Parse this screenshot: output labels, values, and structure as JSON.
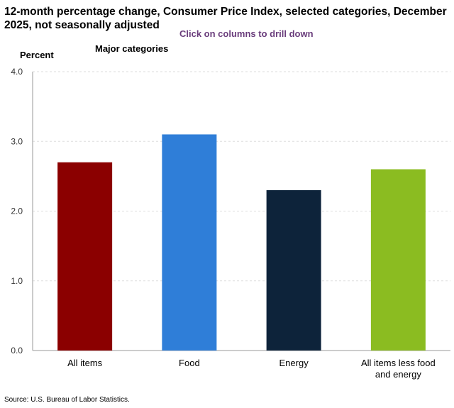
{
  "title": "12-month percentage change, Consumer Price Index, selected categories, December 2025, not seasonally adjusted",
  "subtitle": "Click on columns to drill down",
  "group_label": "Major categories",
  "source": "Source: U.S. Bureau of Labor Statistics.",
  "chart_data": {
    "type": "bar",
    "title": "12-month percentage change, Consumer Price Index, selected categories, December 2025, not seasonally adjusted",
    "ylabel": "Percent",
    "xlabel": "",
    "ylim": [
      0,
      4
    ],
    "yticks": [
      "0.0",
      "1.0",
      "2.0",
      "3.0",
      "4.0"
    ],
    "categories": [
      "All items",
      "Food",
      "Energy",
      "All items less food and energy"
    ],
    "values": [
      2.7,
      3.1,
      2.3,
      2.6
    ],
    "colors": [
      "#8b0000",
      "#2f7ed8",
      "#0d233a",
      "#8bbc21"
    ],
    "grid": true
  }
}
